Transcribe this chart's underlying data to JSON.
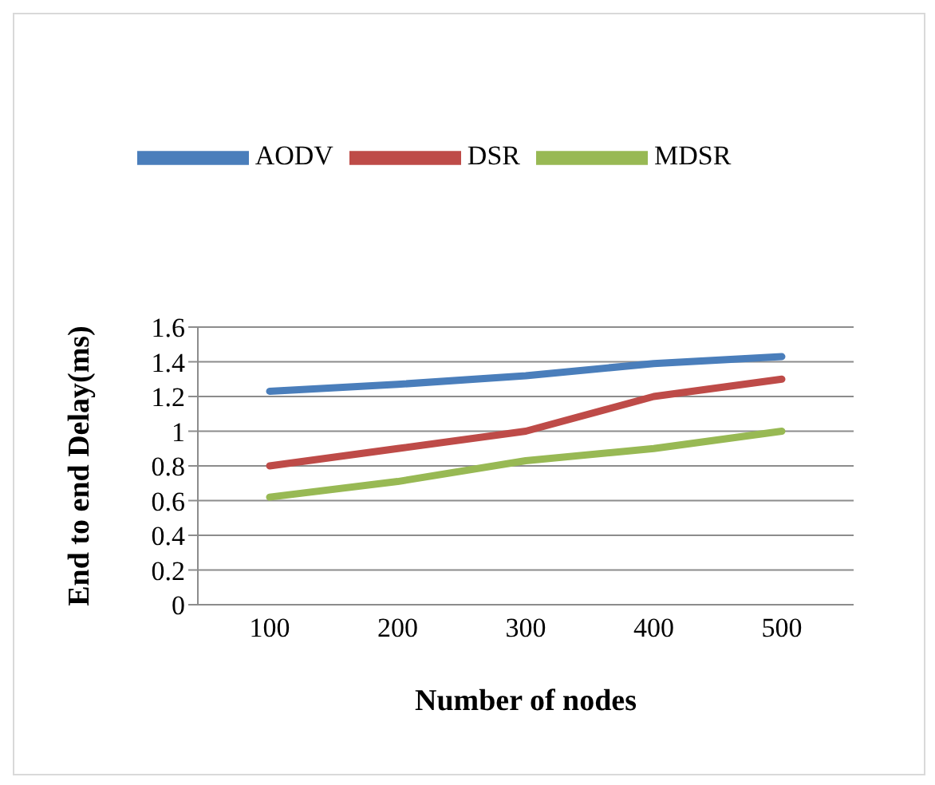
{
  "chart_data": {
    "type": "line",
    "xlabel": "Number of nodes",
    "ylabel": "End to end Delay(ms)",
    "categories": [
      "100",
      "200",
      "300",
      "400",
      "500"
    ],
    "series": [
      {
        "name": "AODV",
        "color": "#4a7ebb",
        "values": [
          1.23,
          1.27,
          1.32,
          1.39,
          1.43
        ]
      },
      {
        "name": "DSR",
        "color": "#be4b48",
        "values": [
          0.8,
          0.9,
          1.0,
          1.2,
          1.3
        ]
      },
      {
        "name": "MDSR",
        "color": "#98b954",
        "values": [
          0.62,
          0.71,
          0.83,
          0.9,
          1.0
        ]
      }
    ],
    "ylim": [
      0,
      1.6
    ],
    "yticks": [
      0,
      0.2,
      0.4,
      0.6,
      0.8,
      1,
      1.2,
      1.4,
      1.6
    ],
    "grid": "y",
    "legend": "top",
    "marker": "none",
    "line_style": "solid"
  }
}
